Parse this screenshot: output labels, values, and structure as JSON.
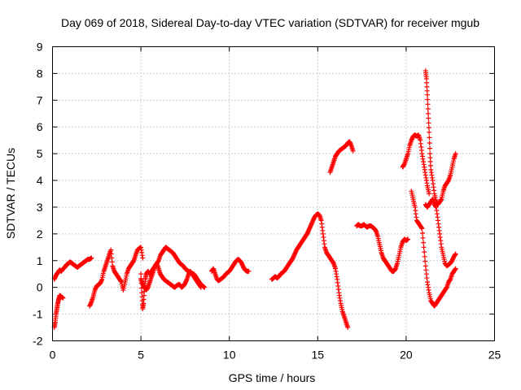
{
  "chart_data": {
    "type": "scatter",
    "title": "Day 069 of 2018, Sidereal Day-to-day VTEC variation (SDTVAR) for receiver mgub",
    "xlabel": "GPS time / hours",
    "ylabel": "SDTVAR / TECUs",
    "xlim": [
      0,
      25
    ],
    "ylim": [
      -2,
      9
    ],
    "grid": true,
    "xticks": [
      0,
      5,
      10,
      15,
      20,
      25
    ],
    "xtick_labels": [
      "0",
      "5",
      "10",
      "15",
      "20",
      "25"
    ],
    "yticks": [
      -2,
      -1,
      0,
      1,
      2,
      3,
      4,
      5,
      6,
      7,
      8,
      9
    ],
    "ytick_labels": [
      "-2",
      "-1",
      "0",
      "1",
      "2",
      "3",
      "4",
      "5",
      "6",
      "7",
      "8",
      "9"
    ],
    "marker": "+",
    "series": [
      {
        "name": "SDTVAR",
        "color": "#ff0000",
        "segments": [
          {
            "x": [
              0.1,
              0.15,
              0.2,
              0.25,
              0.3,
              0.35,
              0.4
            ],
            "y": [
              -1.5,
              -1.3,
              -1.0,
              -0.8,
              -0.6,
              -0.45,
              -0.35
            ]
          },
          {
            "x": [
              0.4,
              0.5,
              0.6
            ],
            "y": [
              -0.3,
              -0.35,
              -0.4
            ]
          },
          {
            "x": [
              0.1,
              0.2,
              0.3,
              0.4,
              0.5,
              0.6,
              0.7,
              0.8,
              0.9,
              1.0,
              1.1,
              1.2,
              1.3,
              1.4,
              1.5,
              1.6,
              1.7,
              1.8,
              1.9,
              2.0,
              2.1,
              2.2
            ],
            "y": [
              0.3,
              0.45,
              0.55,
              0.65,
              0.6,
              0.7,
              0.75,
              0.85,
              0.9,
              0.95,
              0.9,
              0.85,
              0.8,
              0.75,
              0.8,
              0.85,
              0.9,
              0.95,
              1.0,
              1.05,
              1.05,
              1.1
            ]
          },
          {
            "x": [
              2.1,
              2.2,
              2.3,
              2.4,
              2.5,
              2.6,
              2.7,
              2.8,
              2.9,
              3.0,
              3.1,
              3.2,
              3.3,
              3.4,
              3.5,
              3.6,
              3.7,
              3.8,
              3.9,
              4.0,
              4.1,
              4.2,
              4.3,
              4.4,
              4.5,
              4.6,
              4.7,
              4.8,
              4.9,
              5.0,
              5.1
            ],
            "y": [
              -0.7,
              -0.55,
              -0.35,
              -0.1,
              0.05,
              0.1,
              0.15,
              0.3,
              0.6,
              0.8,
              1.0,
              1.2,
              1.4,
              0.8,
              0.6,
              0.5,
              0.4,
              0.3,
              0.2,
              -0.1,
              0.2,
              0.5,
              0.7,
              0.8,
              0.9,
              1.0,
              1.2,
              1.4,
              1.45,
              1.5,
              1.1
            ]
          },
          {
            "x": [
              5.0,
              5.05,
              5.1,
              5.15,
              5.2,
              5.25,
              5.3,
              5.4,
              5.5,
              5.6,
              5.7,
              5.8,
              5.9,
              6.0,
              6.1,
              6.2,
              6.3,
              6.4,
              6.5,
              6.6,
              6.7,
              6.8,
              6.9,
              7.0,
              7.1,
              7.2,
              7.3,
              7.4,
              7.5,
              7.6,
              7.7,
              7.8,
              7.9,
              8.0,
              8.1,
              8.2,
              8.3,
              8.4,
              8.5,
              8.6
            ],
            "y": [
              0.5,
              -0.2,
              -0.8,
              -0.6,
              0.0,
              0.3,
              0.5,
              0.6,
              0.5,
              0.6,
              0.7,
              0.8,
              0.9,
              1.0,
              1.2,
              1.3,
              1.4,
              1.5,
              1.45,
              1.4,
              1.35,
              1.3,
              1.2,
              1.1,
              1.0,
              0.9,
              0.85,
              0.8,
              0.7,
              0.65,
              0.6,
              0.55,
              0.5,
              0.5,
              0.4,
              0.3,
              0.2,
              0.1,
              0.05,
              0.0
            ]
          },
          {
            "x": [
              5.0,
              5.1,
              5.2,
              5.3,
              5.4,
              5.5,
              5.6,
              5.7,
              5.8,
              5.9,
              6.0,
              6.1,
              6.2,
              6.3,
              6.4,
              6.5,
              6.6,
              6.7,
              6.8,
              6.9,
              7.0,
              7.1,
              7.2,
              7.3,
              7.4,
              7.5,
              7.6,
              7.7,
              7.8,
              7.9,
              8.0,
              8.1,
              8.2,
              8.3,
              8.4
            ],
            "y": [
              0.3,
              0.1,
              0.0,
              -0.1,
              0.0,
              0.2,
              0.4,
              0.6,
              0.8,
              0.9,
              0.7,
              0.5,
              0.4,
              0.3,
              0.25,
              0.2,
              0.15,
              0.1,
              0.05,
              0.0,
              0.05,
              0.1,
              0.1,
              0.0,
              0.05,
              0.15,
              0.3,
              0.5,
              0.6,
              0.5,
              0.4,
              0.3,
              0.2,
              0.1,
              0.0
            ]
          },
          {
            "x": [
              9.0,
              9.1,
              9.2,
              9.3,
              9.4,
              9.5,
              9.6,
              9.7,
              9.8,
              9.9,
              10.0,
              10.1,
              10.2,
              10.3,
              10.4,
              10.5,
              10.6,
              10.7,
              10.8,
              10.9,
              11.0,
              11.1
            ],
            "y": [
              0.6,
              0.7,
              0.5,
              0.3,
              0.25,
              0.3,
              0.35,
              0.4,
              0.5,
              0.55,
              0.6,
              0.7,
              0.8,
              0.9,
              1.0,
              1.05,
              1.0,
              0.9,
              0.75,
              0.65,
              0.6,
              0.6
            ]
          },
          {
            "x": [
              12.4,
              12.5,
              12.6,
              12.7,
              12.8,
              12.9,
              13.0,
              13.1,
              13.2,
              13.3,
              13.4,
              13.5,
              13.6,
              13.7,
              13.8,
              13.9,
              14.0,
              14.1,
              14.2,
              14.3,
              14.4,
              14.5,
              14.6,
              14.7,
              14.8,
              14.9,
              15.0,
              15.1,
              15.2,
              15.3,
              15.4,
              15.5,
              15.6,
              15.7,
              15.8,
              15.9,
              16.0,
              16.1,
              16.2,
              16.3,
              16.4,
              16.5,
              16.6,
              16.7
            ],
            "y": [
              0.3,
              0.35,
              0.4,
              0.35,
              0.4,
              0.5,
              0.55,
              0.6,
              0.7,
              0.8,
              0.9,
              1.0,
              1.1,
              1.25,
              1.4,
              1.5,
              1.6,
              1.7,
              1.8,
              1.9,
              2.0,
              2.15,
              2.3,
              2.45,
              2.6,
              2.7,
              2.75,
              2.7,
              2.5,
              2.0,
              1.5,
              1.3,
              1.2,
              1.1,
              1.0,
              0.9,
              0.7,
              0.3,
              -0.2,
              -0.6,
              -0.9,
              -1.1,
              -1.3,
              -1.5
            ]
          },
          {
            "x": [
              15.7,
              15.8,
              15.9,
              16.0,
              16.1,
              16.2,
              16.3,
              16.4,
              16.5,
              16.6,
              16.7,
              16.8,
              16.9,
              17.0
            ],
            "y": [
              4.3,
              4.5,
              4.7,
              4.9,
              5.0,
              5.1,
              5.15,
              5.2,
              5.25,
              5.3,
              5.4,
              5.45,
              5.3,
              5.1
            ]
          },
          {
            "x": [
              17.2,
              17.3,
              17.4,
              17.5,
              17.6,
              17.7,
              17.8,
              17.9,
              18.0,
              18.1,
              18.2,
              18.3,
              18.4,
              18.5,
              18.6,
              18.7,
              18.8,
              18.9,
              19.0,
              19.1,
              19.2,
              19.3,
              19.4,
              19.5,
              19.6,
              19.7,
              19.8,
              19.9,
              20.0,
              20.1
            ],
            "y": [
              2.3,
              2.35,
              2.3,
              2.3,
              2.35,
              2.3,
              2.25,
              2.3,
              2.3,
              2.25,
              2.2,
              2.1,
              1.9,
              1.6,
              1.3,
              1.1,
              1.0,
              0.9,
              0.8,
              0.7,
              0.6,
              0.6,
              0.7,
              0.9,
              1.2,
              1.5,
              1.7,
              1.8,
              1.75,
              1.8
            ]
          },
          {
            "x": [
              19.8,
              19.9,
              20.0,
              20.1,
              20.2,
              20.3,
              20.4,
              20.5,
              20.6,
              20.7,
              20.8,
              20.9,
              21.0,
              21.1,
              21.2,
              21.3
            ],
            "y": [
              4.5,
              4.6,
              4.8,
              5.0,
              5.3,
              5.5,
              5.65,
              5.7,
              5.65,
              5.7,
              5.5,
              5.0,
              4.6,
              4.2,
              3.8,
              3.5
            ]
          },
          {
            "x": [
              20.3,
              20.4,
              20.5,
              20.6,
              20.7,
              20.8,
              20.9,
              21.0,
              21.1,
              21.2,
              21.3,
              21.4,
              21.5,
              21.6,
              21.7,
              21.8,
              21.9,
              22.0,
              22.1,
              22.2,
              22.3,
              22.4,
              22.5,
              22.6,
              22.7,
              22.8
            ],
            "y": [
              3.6,
              3.3,
              3.0,
              2.5,
              2.4,
              2.3,
              2.2,
              1.5,
              0.8,
              0.2,
              -0.2,
              -0.5,
              -0.6,
              -0.7,
              -0.6,
              -0.5,
              -0.4,
              -0.3,
              -0.2,
              -0.1,
              0.0,
              0.2,
              0.3,
              0.5,
              0.6,
              0.7
            ]
          },
          {
            "x": [
              21.1,
              21.15,
              21.2,
              21.25,
              21.3,
              21.35,
              21.4,
              21.5,
              21.6,
              21.7,
              21.8,
              21.9,
              22.0,
              22.1,
              22.2,
              22.3,
              22.4,
              22.5,
              22.6,
              22.7,
              22.8
            ],
            "y": [
              8.1,
              7.8,
              7.2,
              6.5,
              5.8,
              5.0,
              4.4,
              4.0,
              3.5,
              3.2,
              3.1,
              3.2,
              3.3,
              3.6,
              3.8,
              3.9,
              4.0,
              4.2,
              4.5,
              4.8,
              5.0
            ]
          },
          {
            "x": [
              21.1,
              21.2,
              21.3,
              21.4,
              21.5,
              21.6,
              21.7,
              21.8,
              21.9,
              22.0,
              22.1,
              22.2,
              22.3,
              22.4,
              22.5,
              22.6,
              22.7,
              22.8
            ],
            "y": [
              3.1,
              3.0,
              3.1,
              3.2,
              3.3,
              3.1,
              3.0,
              2.5,
              2.0,
              1.5,
              1.2,
              0.9,
              0.8,
              0.85,
              0.9,
              1.0,
              1.15,
              1.25
            ]
          }
        ]
      }
    ]
  }
}
